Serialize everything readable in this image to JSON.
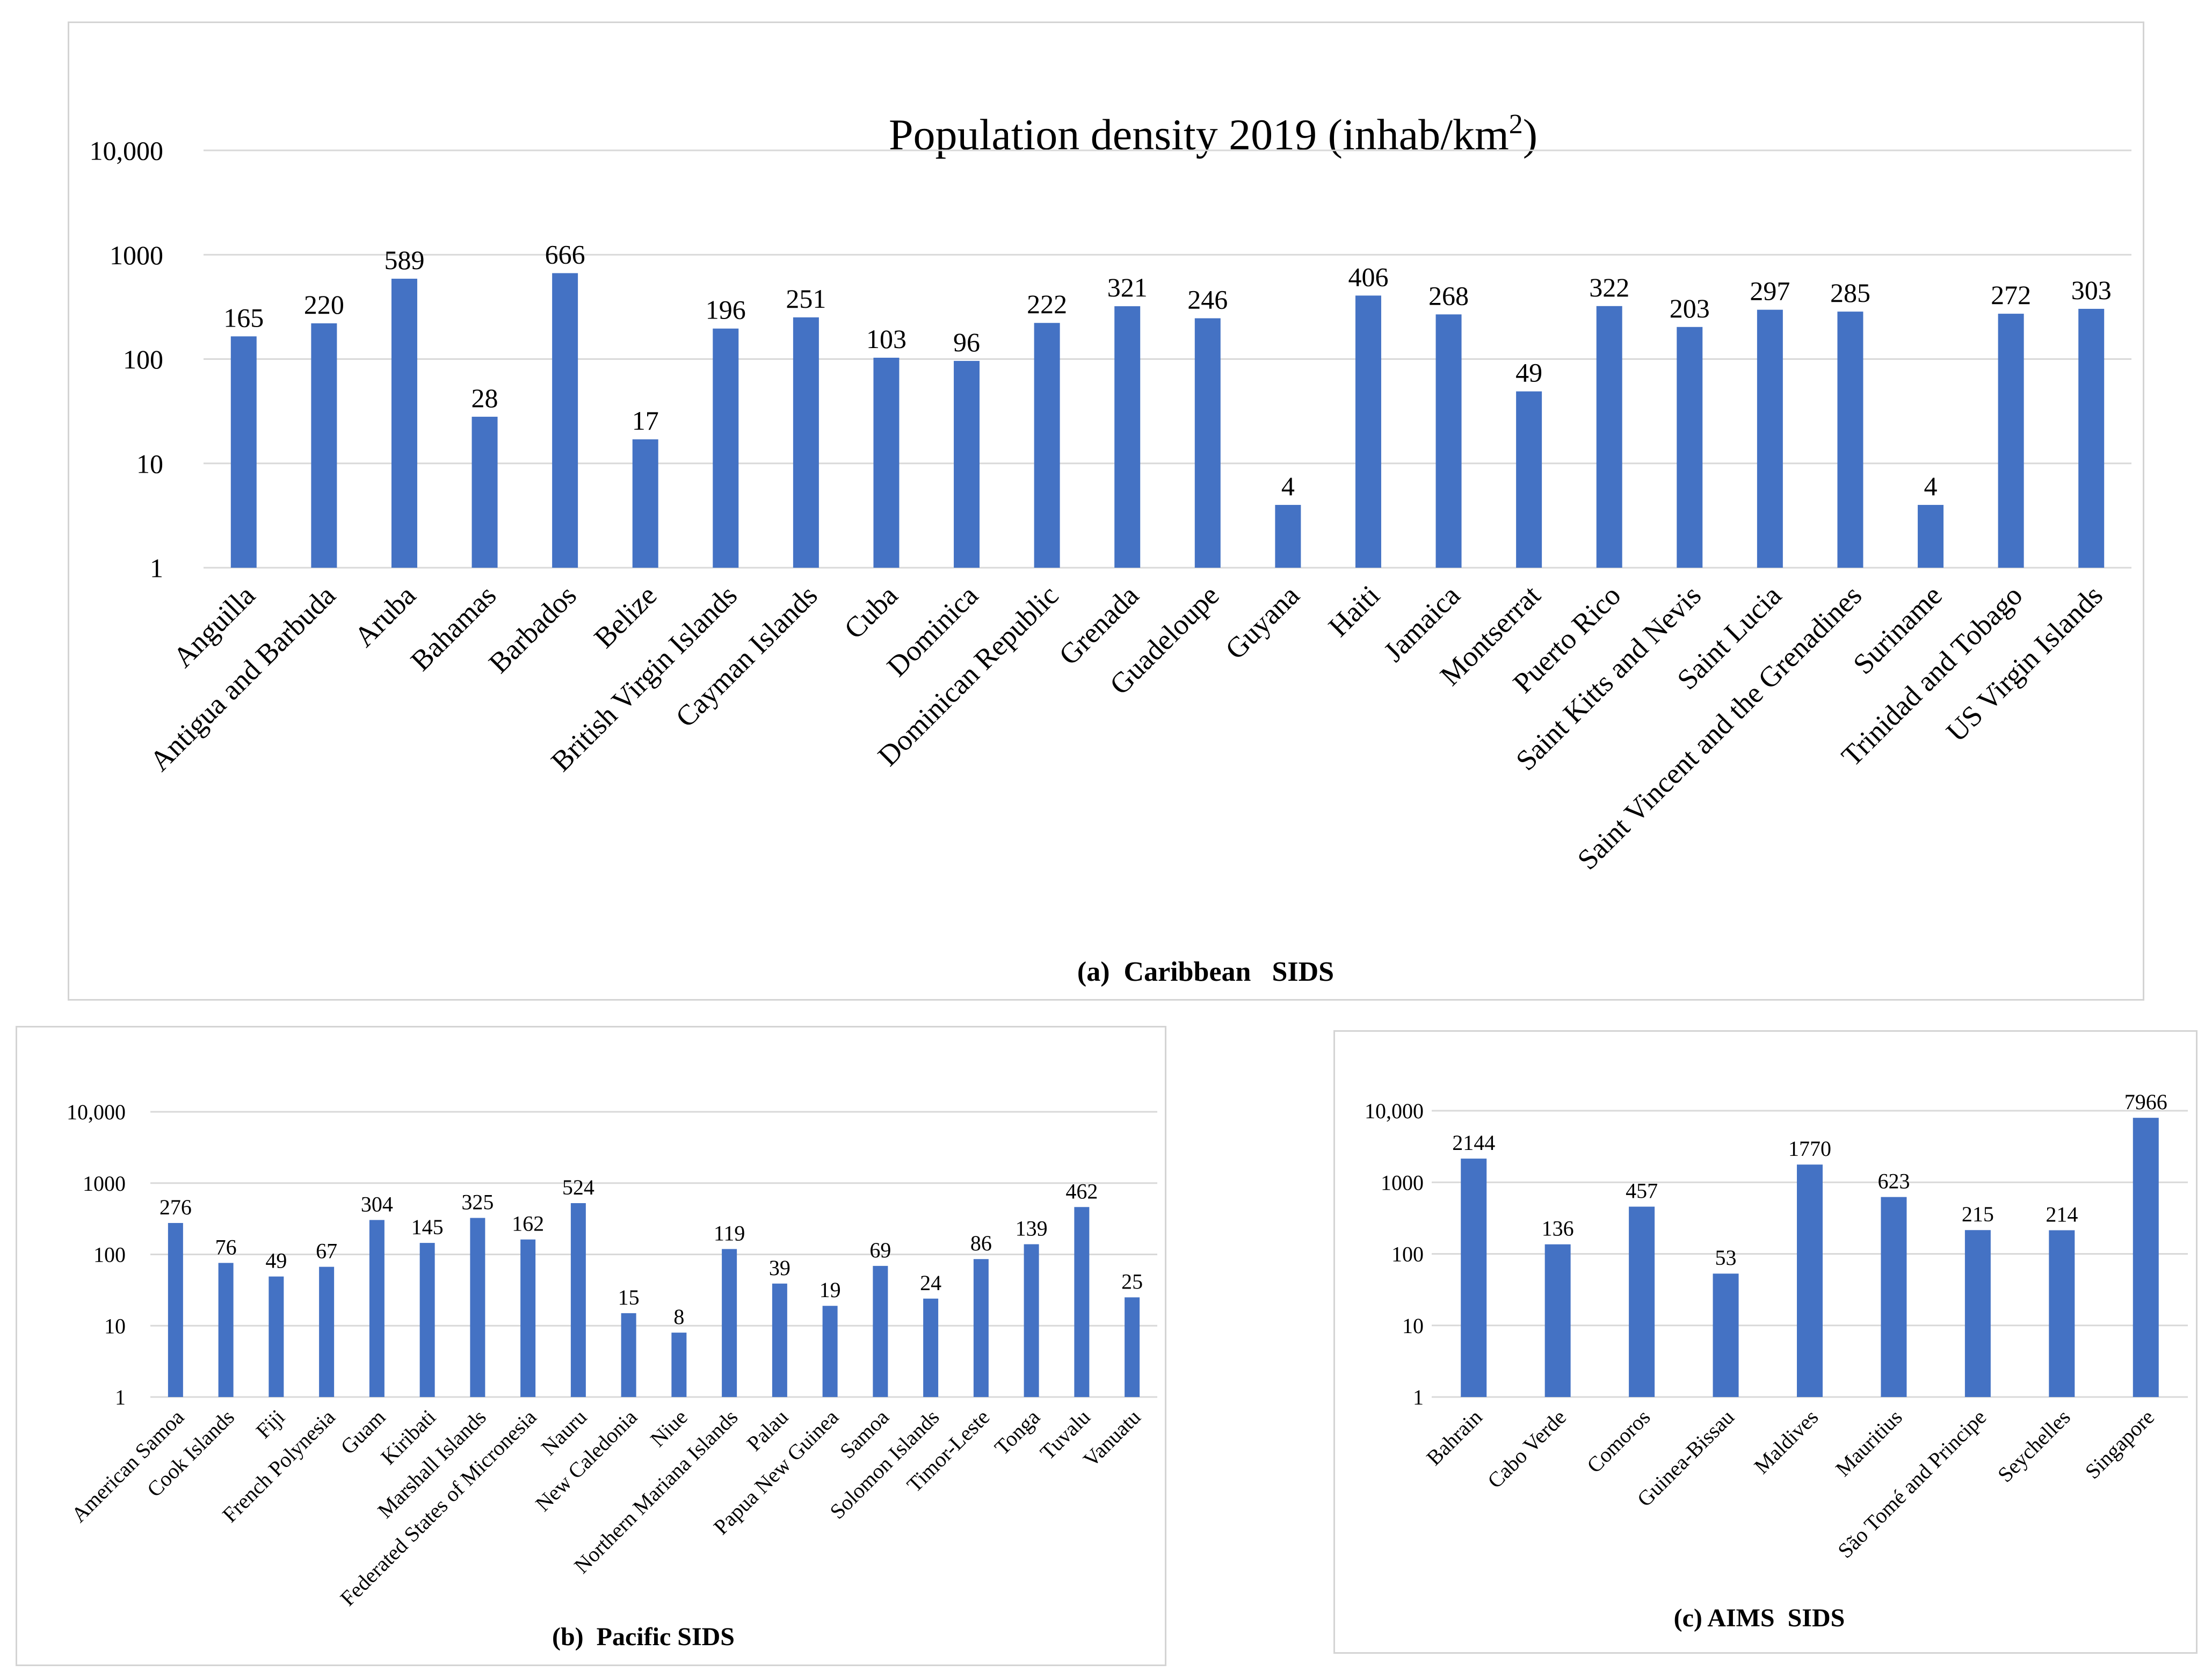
{
  "figure": {
    "title": "Population density 2019 (inhab/km",
    "title_sup": "2",
    "title_close": ")"
  },
  "colors": {
    "bar": "#4472C4",
    "grid": "#d9d9d9",
    "text": "#000000"
  },
  "chart_data": [
    {
      "id": "caribbean",
      "type": "bar",
      "caption": "(a)  Caribbean   SIDS",
      "yscale": "log",
      "ylim": [
        1,
        10000
      ],
      "yticks": [
        1,
        10,
        100,
        1000,
        10000
      ],
      "ytick_labels": [
        "1",
        "10",
        "100",
        "1000",
        "10,000"
      ],
      "categories": [
        "Anguilla",
        "Antigua and Barbuda",
        "Aruba",
        "Bahamas",
        "Barbados",
        "Belize",
        "British Virgin Islands",
        "Cayman Islands",
        "Cuba",
        "Dominica",
        "Dominican Republic",
        "Grenada",
        "Guadeloupe",
        "Guyana",
        "Haiti",
        "Jamaica",
        "Montserrat",
        "Puerto Rico",
        "Saint Kitts and Nevis",
        "Saint Lucia",
        "Saint Vincent and the Grenadines",
        "Suriname",
        "Trinidad and Tobago",
        "US Virgin Islands"
      ],
      "values": [
        165,
        220,
        589,
        28,
        666,
        17,
        196,
        251,
        103,
        96,
        222,
        321,
        246,
        4,
        406,
        268,
        49,
        322,
        203,
        297,
        285,
        4,
        272,
        303
      ],
      "value_labels": [
        "165",
        "220",
        "589",
        "28",
        "666",
        "17",
        "196",
        "251",
        "103",
        "96",
        "222",
        "321",
        "246",
        "4",
        "406",
        "268",
        "49",
        "322",
        "203",
        "297",
        "285",
        "4",
        "272",
        "303"
      ],
      "xlabel": "",
      "ylabel": ""
    },
    {
      "id": "pacific",
      "type": "bar",
      "caption": "(b)  Pacific SIDS",
      "yscale": "log",
      "ylim": [
        1,
        10000
      ],
      "yticks": [
        1,
        10,
        100,
        1000,
        10000
      ],
      "ytick_labels": [
        "1",
        "10",
        "100",
        "1000",
        "10,000"
      ],
      "categories": [
        "American Samoa",
        "Cook Islands",
        "Fiji",
        "French Polynesia",
        "Guam",
        "Kiribati",
        "Marshall Islands",
        "Federated States of Micronesia",
        "Nauru",
        "New Caledonia",
        "Niue",
        "Northern Mariana Islands",
        "Palau",
        "Papua New Guinea",
        "Samoa",
        "Solomon Islands",
        "Timor-Leste",
        "Tonga",
        "Tuvalu",
        "Vanuatu"
      ],
      "values": [
        276,
        76,
        49,
        67,
        304,
        145,
        325,
        162,
        524,
        15,
        8,
        119,
        39,
        19,
        69,
        24,
        86,
        139,
        462,
        25
      ],
      "value_labels": [
        "276",
        "76",
        "49",
        "67",
        "304",
        "145",
        "325",
        "162",
        "524",
        "15",
        "8",
        "119",
        "39",
        "19",
        "69",
        "24",
        "86",
        "139",
        "462",
        "25"
      ],
      "xlabel": "",
      "ylabel": ""
    },
    {
      "id": "aims",
      "type": "bar",
      "caption": "(c) AIMS  SIDS",
      "yscale": "log",
      "ylim": [
        1,
        10000
      ],
      "yticks": [
        1,
        10,
        100,
        1000,
        10000
      ],
      "ytick_labels": [
        "1",
        "10",
        "100",
        "1000",
        "10,000"
      ],
      "categories": [
        "Bahrain",
        "Cabo Verde",
        "Comoros",
        "Guinea-Bissau",
        "Maldives",
        "Mauritius",
        "São Tomé and Principe",
        "Seychelles",
        "Singapore"
      ],
      "values": [
        2144,
        136,
        457,
        53,
        1770,
        623,
        215,
        214,
        7966
      ],
      "value_labels": [
        "2144",
        "136",
        "457",
        "53",
        "1770",
        "623",
        "215",
        "214",
        "7966"
      ],
      "xlabel": "",
      "ylabel": ""
    }
  ]
}
